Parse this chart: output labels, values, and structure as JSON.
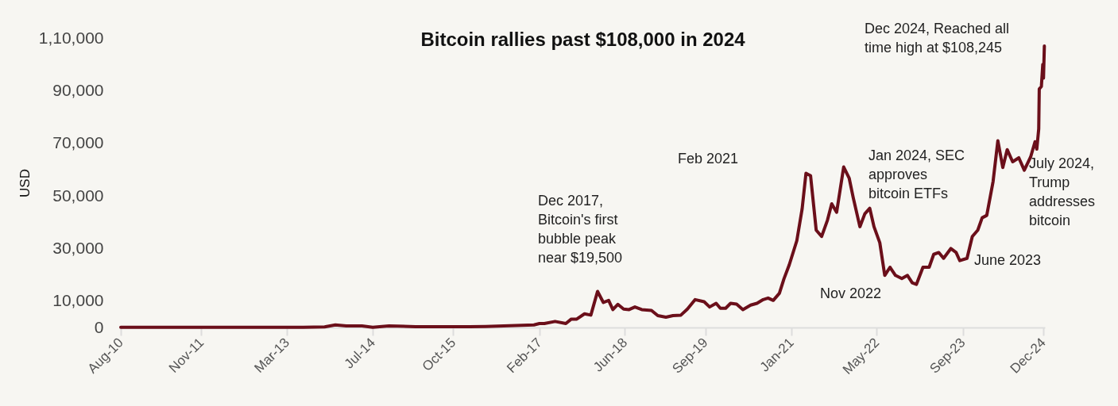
{
  "chart_data": {
    "type": "line",
    "title": "Bitcoin rallies past $108,000 in 2024",
    "ylabel": "USD",
    "xlim": [
      "2010-08-01",
      "2024-12-10"
    ],
    "xticks": [
      {
        "value": "2010-08-01",
        "label": "Aug-10"
      },
      {
        "value": "2011-11-01",
        "label": "Nov-11"
      },
      {
        "value": "2013-03-01",
        "label": "Mar-13"
      },
      {
        "value": "2014-07-01",
        "label": "Jul-14"
      },
      {
        "value": "2015-10-01",
        "label": "Oct-15"
      },
      {
        "value": "2017-02-01",
        "label": "Feb-17"
      },
      {
        "value": "2018-06-01",
        "label": "Jun-18"
      },
      {
        "value": "2019-09-01",
        "label": "Sep-19"
      },
      {
        "value": "2021-01-01",
        "label": "Jan-21"
      },
      {
        "value": "2022-05-01",
        "label": "May-22"
      },
      {
        "value": "2023-09-01",
        "label": "Sep-23"
      },
      {
        "value": "2024-12-01",
        "label": "Dec-24"
      }
    ],
    "ylim": [
      0,
      110000
    ],
    "yticks": [
      {
        "value": 0,
        "label": "0"
      },
      {
        "value": 10000,
        "label": "10,000"
      },
      {
        "value": 30000,
        "label": "30,000"
      },
      {
        "value": 50000,
        "label": "50,000"
      },
      {
        "value": 70000,
        "label": "70,000"
      },
      {
        "value": 90000,
        "label": "90,000"
      },
      {
        "value": 110000,
        "label": "1,10,000"
      }
    ],
    "x": [
      "2010-08-01",
      "2011-06-01",
      "2012-06-01",
      "2013-06-01",
      "2013-10-01",
      "2013-12-01",
      "2014-02-01",
      "2014-05-01",
      "2014-07-01",
      "2014-10-01",
      "2015-03-01",
      "2016-01-01",
      "2016-04-01",
      "2017-01-01",
      "2017-02-01",
      "2017-03-01",
      "2017-05-01",
      "2017-07-01",
      "2017-08-01",
      "2017-09-01",
      "2017-10-15",
      "2017-11-20",
      "2017-12-28",
      "2018-01-30",
      "2018-03-01",
      "2018-03-25",
      "2018-04-22",
      "2018-05-25",
      "2018-06-25",
      "2018-07-28",
      "2018-09-05",
      "2018-10-30",
      "2018-12-05",
      "2019-01-20",
      "2019-03-01",
      "2019-04-15",
      "2019-05-22",
      "2019-07-05",
      "2019-08-25",
      "2019-09-25",
      "2019-11-01",
      "2019-11-25",
      "2019-12-25",
      "2020-01-22",
      "2020-02-25",
      "2020-04-01",
      "2020-05-15",
      "2020-06-20",
      "2020-07-25",
      "2020-08-22",
      "2020-09-20",
      "2020-10-25",
      "2020-11-20",
      "2020-12-20",
      "2021-02-01",
      "2021-03-03",
      "2021-03-25",
      "2021-04-20",
      "2021-05-22",
      "2021-06-22",
      "2021-07-25",
      "2021-08-18",
      "2021-09-15",
      "2021-10-25",
      "2021-11-25",
      "2021-12-18",
      "2022-01-25",
      "2022-02-22",
      "2022-03-22",
      "2022-04-15",
      "2022-05-18",
      "2022-06-15",
      "2022-07-15",
      "2022-08-15",
      "2022-09-20",
      "2022-10-22",
      "2022-11-18",
      "2022-12-12",
      "2023-01-18",
      "2023-02-22",
      "2023-03-20",
      "2023-04-18",
      "2023-05-15",
      "2023-06-25",
      "2023-07-25",
      "2023-08-15",
      "2023-09-25",
      "2023-10-25",
      "2023-11-25",
      "2023-12-20",
      "2024-01-15",
      "2024-02-20",
      "2024-03-18",
      "2024-04-15",
      "2024-05-10",
      "2024-06-10",
      "2024-07-15",
      "2024-08-15",
      "2024-09-20",
      "2024-10-15",
      "2024-10-25",
      "2024-11-05",
      "2024-11-08",
      "2024-11-20",
      "2024-11-28",
      "2024-12-02",
      "2024-12-07"
    ],
    "series": [
      {
        "color": "#6b0f1a",
        "values": [
          100,
          100,
          100,
          100,
          200,
          1000,
          600,
          600,
          100,
          600,
          300,
          300,
          400,
          1000,
          1500,
          1500,
          2300,
          1500,
          3200,
          3200,
          5200,
          4700,
          13700,
          9500,
          10300,
          6800,
          8800,
          7000,
          6800,
          7800,
          6800,
          6500,
          4500,
          3900,
          4500,
          4700,
          7000,
          10600,
          9800,
          7800,
          9200,
          7300,
          7300,
          9200,
          8900,
          6800,
          8500,
          9200,
          10600,
          11200,
          10300,
          13000,
          18500,
          23800,
          33000,
          45000,
          58600,
          57700,
          37000,
          34600,
          40800,
          47000,
          43800,
          61000,
          56800,
          49400,
          38300,
          43200,
          45300,
          38300,
          32200,
          19800,
          22900,
          19800,
          18600,
          19800,
          17000,
          16400,
          22900,
          22900,
          27800,
          28500,
          26300,
          30000,
          28500,
          25400,
          26300,
          34600,
          37000,
          41700,
          42600,
          55500,
          71000,
          60800,
          67600,
          63000,
          64500,
          59800,
          64800,
          70600,
          67800,
          75500,
          90600,
          91600,
          100000,
          94800,
          107000
        ]
      }
    ],
    "annotations": [
      "Dec 2017,\nBitcoin's first\nbubble peak\nnear $19,500",
      "Feb 2021",
      "Nov 2022",
      "Jan 2024, SEC\napproves\nbitcoin ETFs",
      "June 2023",
      "July 2024,\nTrump\naddresses\nbitcoin",
      "Dec 2024, Reached all\ntime high at $108,245"
    ]
  }
}
